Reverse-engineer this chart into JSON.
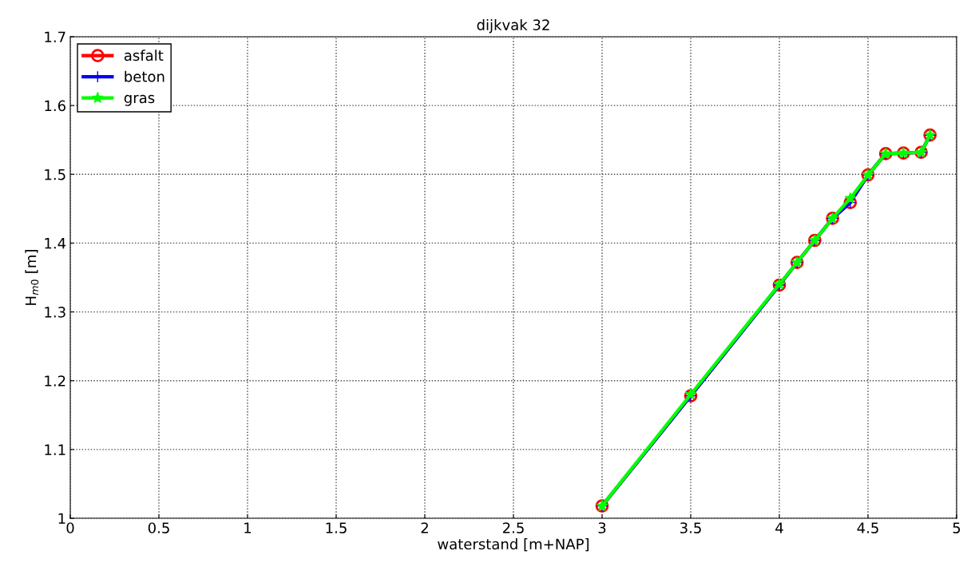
{
  "chart_data": {
    "type": "line",
    "title": "dijkvak 32",
    "xlabel": "waterstand [m+NAP]",
    "ylabel": "H$_{m0}$ [m]",
    "x": [
      3.0,
      3.5,
      4.0,
      4.1,
      4.2,
      4.3,
      4.4,
      4.5,
      4.6,
      4.7,
      4.8,
      4.85
    ],
    "series": [
      {
        "name": "asfalt",
        "color": "#ff0000",
        "marker": "circle",
        "values": [
          1.018,
          1.178,
          1.339,
          1.372,
          1.404,
          1.436,
          1.459,
          1.499,
          1.53,
          1.531,
          1.532,
          1.557
        ]
      },
      {
        "name": "beton",
        "color": "#0000ff",
        "marker": "cross",
        "values": [
          1.018,
          1.178,
          1.339,
          1.372,
          1.404,
          1.436,
          1.459,
          1.499,
          1.53,
          1.531,
          1.532,
          1.557
        ]
      },
      {
        "name": "gras",
        "color": "#00ff00",
        "marker": "star",
        "values": [
          1.018,
          1.18,
          1.34,
          1.372,
          1.404,
          1.436,
          1.465,
          1.499,
          1.53,
          1.531,
          1.532,
          1.557
        ]
      }
    ],
    "xlim": [
      0,
      5
    ],
    "xticks": [
      0,
      0.5,
      1,
      1.5,
      2,
      2.5,
      3,
      3.5,
      4,
      4.5,
      5
    ],
    "ylim": [
      1,
      1.7
    ],
    "yticks": [
      1,
      1.1,
      1.2,
      1.3,
      1.4,
      1.5,
      1.6,
      1.7
    ],
    "grid": true,
    "legend": "top left",
    "line_style": "solid"
  }
}
